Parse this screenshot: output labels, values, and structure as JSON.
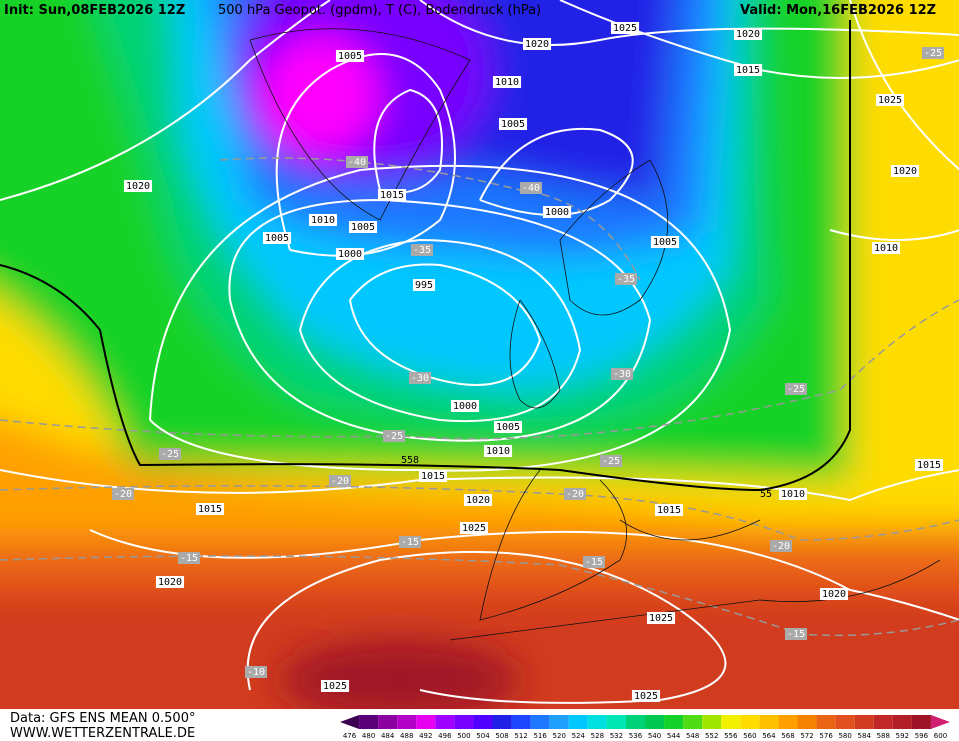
{
  "header": {
    "init": "Init: Sun,08FEB2026 12Z",
    "title": "500 hPa Geopot. (gpdm), T (C), Bodendruck (hPa)",
    "valid": "Valid: Mon,16FEB2026 12Z"
  },
  "footer": {
    "data": "Data: GFS ENS MEAN 0.500°",
    "site": "WWW.WETTERZENTRALE.DE"
  },
  "scale": {
    "values": [
      476,
      480,
      484,
      488,
      492,
      496,
      500,
      504,
      508,
      512,
      516,
      520,
      524,
      528,
      532,
      536,
      540,
      544,
      548,
      552,
      556,
      560,
      564,
      568,
      572,
      576,
      580,
      584,
      588,
      592,
      596,
      600
    ],
    "colors": [
      "#3c0050",
      "#5a0078",
      "#8a00a0",
      "#b400c8",
      "#e600f0",
      "#a000ff",
      "#7800ff",
      "#5000ff",
      "#2020e6",
      "#1e46ff",
      "#1e78ff",
      "#1ea0ff",
      "#00c8ff",
      "#00e0e0",
      "#00e6b4",
      "#00d278",
      "#00c850",
      "#14d228",
      "#50dc14",
      "#a0e600",
      "#f0f000",
      "#ffdc00",
      "#ffc000",
      "#ffa000",
      "#f58200",
      "#eb6414",
      "#e1501e",
      "#d23c1e",
      "#c32828",
      "#b41e28",
      "#a01428",
      "#d21e6e"
    ]
  },
  "map": {
    "pressure_labels": [
      "1025",
      "1020",
      "1020",
      "1015",
      "1005",
      "1010",
      "1025",
      "1005",
      "1020",
      "1020",
      "1015",
      "1000",
      "1010",
      "1005",
      "1005",
      "1005",
      "1010",
      "1000",
      "995",
      "1000",
      "1005",
      "1010",
      "1015",
      "1020",
      "1010",
      "1015",
      "1015",
      "1015",
      "1025",
      "1020",
      "1020",
      "1025",
      "1025",
      "1025"
    ],
    "geopotential_labels": [
      "558",
      "55"
    ],
    "temperature_labels": [
      "-25",
      "-40",
      "-40",
      "-35",
      "-35",
      "-30",
      "-30",
      "-25",
      "-25",
      "-25",
      "-25",
      "-20",
      "-20",
      "-20",
      "-15",
      "-15",
      "-15",
      "-20",
      "-15",
      "-10"
    ]
  }
}
